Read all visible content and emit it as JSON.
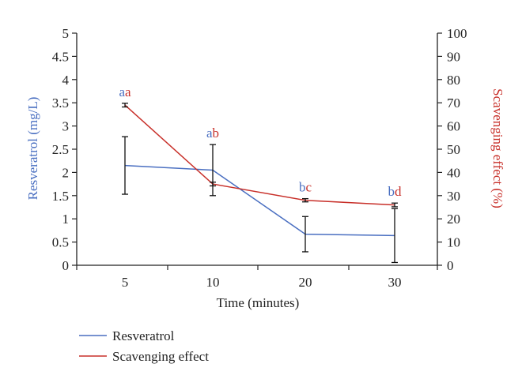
{
  "chart_data": {
    "type": "line",
    "categories": [
      "5",
      "10",
      "20",
      "30"
    ],
    "xlabel": "Time (minutes)",
    "ylabel_left": "Resveratrol (mg/L)",
    "ylabel_right": "Scavenging effect (%)",
    "ylim_left": [
      0,
      5
    ],
    "yticks_left": [
      "0",
      "0.5",
      "1",
      "1.5",
      "2",
      "2.5",
      "3",
      "3.5",
      "4",
      "4.5",
      "5"
    ],
    "ylim_right": [
      0,
      100
    ],
    "yticks_right": [
      "0",
      "10",
      "20",
      "30",
      "40",
      "50",
      "60",
      "70",
      "80",
      "90",
      "100"
    ],
    "grid": false,
    "legend_position": "bottom-left",
    "series": [
      {
        "name": "Resveratrol",
        "axis": "left",
        "color": "#4a6fc1",
        "values": [
          2.15,
          2.05,
          0.67,
          0.64
        ],
        "errors": [
          0.62,
          0.55,
          0.38,
          0.58
        ],
        "letters": [
          "a",
          "a",
          "b",
          "b"
        ]
      },
      {
        "name": "Scavenging effect",
        "axis": "right",
        "color": "#c8302a",
        "values": [
          69,
          35,
          28,
          26
        ],
        "errors": [
          0.8,
          0.8,
          0.7,
          0.8
        ],
        "letters": [
          "a",
          "b",
          "c",
          "d"
        ]
      }
    ]
  }
}
